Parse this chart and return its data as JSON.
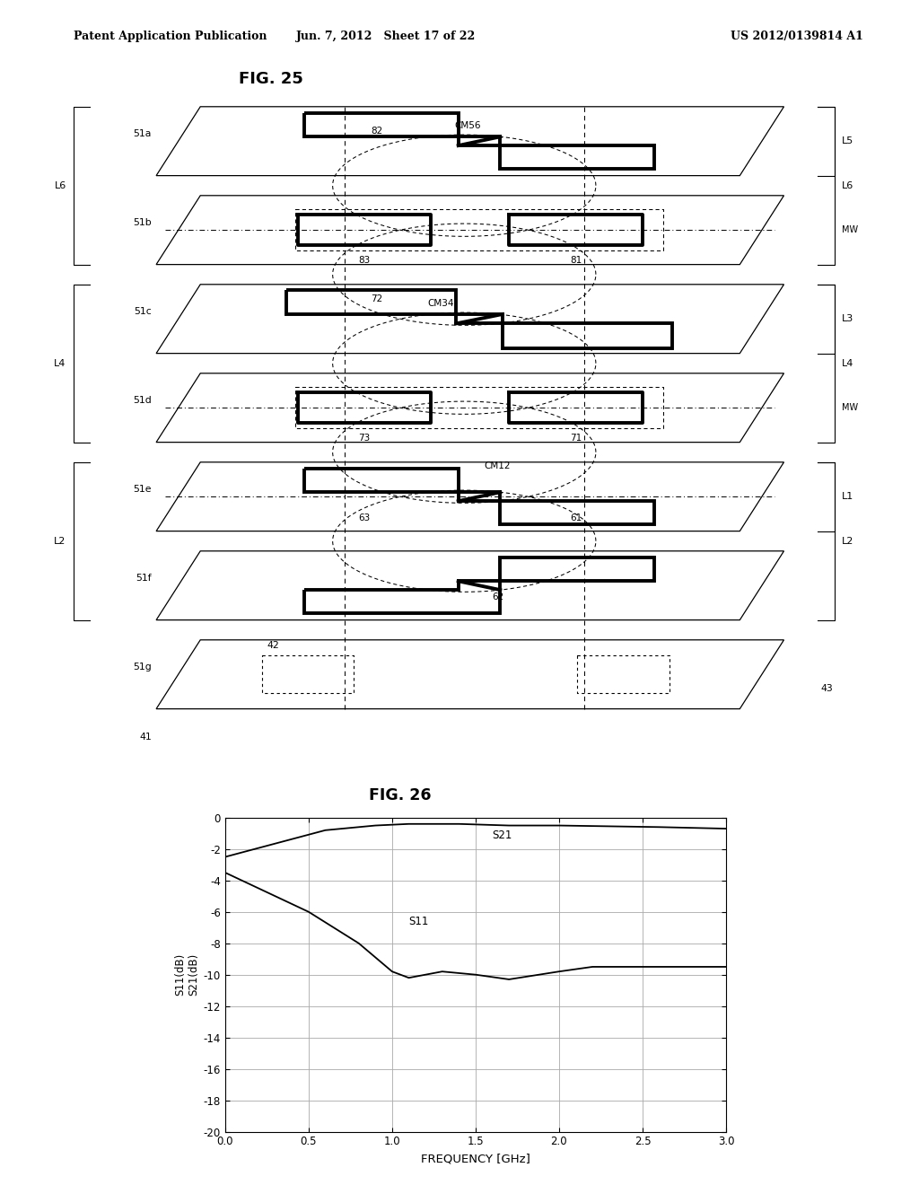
{
  "header_left": "Patent Application Publication",
  "header_center": "Jun. 7, 2012   Sheet 17 of 22",
  "header_right": "US 2012/0139814 A1",
  "fig25_title": "FIG. 25",
  "fig26_title": "FIG. 26",
  "ylabel": "S11(dB)\nS21(dB)",
  "xlabel": "FREQUENCY [GHz]",
  "xlim": [
    0.0,
    3.0
  ],
  "ylim": [
    -20,
    0
  ],
  "xticks": [
    0.0,
    0.5,
    1.0,
    1.5,
    2.0,
    2.5,
    3.0
  ],
  "yticks": [
    0,
    -2,
    -4,
    -6,
    -8,
    -10,
    -12,
    -14,
    -16,
    -18,
    -20
  ],
  "S21_x": [
    0.0,
    0.6,
    0.9,
    1.1,
    1.4,
    1.7,
    2.0,
    2.3,
    2.6,
    3.0
  ],
  "S21_y": [
    -2.5,
    -0.8,
    -0.5,
    -0.4,
    -0.4,
    -0.5,
    -0.5,
    -0.55,
    -0.6,
    -0.7
  ],
  "S11_x": [
    0.0,
    0.5,
    0.8,
    1.0,
    1.1,
    1.3,
    1.5,
    1.7,
    2.0,
    2.2,
    2.5,
    3.0
  ],
  "S11_y": [
    -3.5,
    -6.0,
    -8.0,
    -9.8,
    -10.2,
    -9.8,
    -10.0,
    -10.3,
    -9.8,
    -9.5,
    -9.5,
    -9.5
  ],
  "bg_color": "#ffffff",
  "line_color": "#000000",
  "grid_color": "#aaaaaa"
}
